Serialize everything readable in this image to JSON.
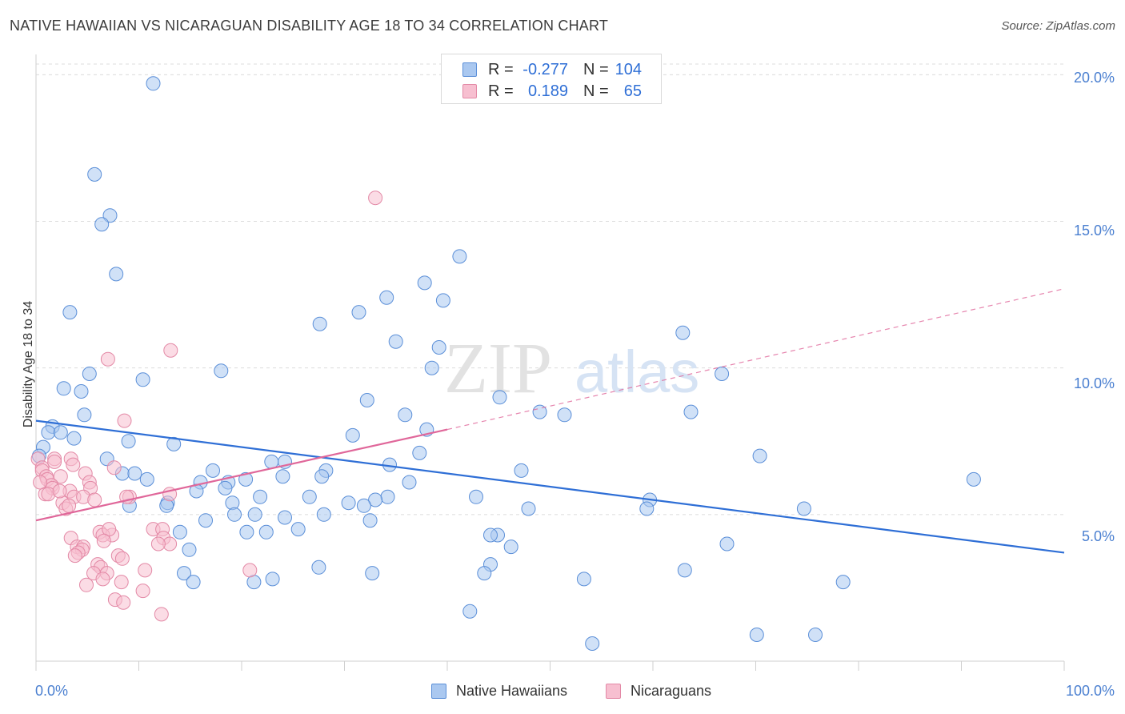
{
  "title": "NATIVE HAWAIIAN VS NICARAGUAN DISABILITY AGE 18 TO 34 CORRELATION CHART",
  "source": "Source: ZipAtlas.com",
  "watermark": {
    "zip": "ZIP",
    "atlas": "atlas"
  },
  "stats": [
    {
      "r_label": "R =",
      "r_value": "-0.277",
      "n_label": "N =",
      "n_value": "104",
      "color": "#aac8f0",
      "border": "#5b8fd8"
    },
    {
      "r_label": "R =",
      "r_value": "0.189",
      "n_label": "N =",
      "n_value": "65",
      "color": "#f7bfd0",
      "border": "#e389a6"
    }
  ],
  "legend": [
    {
      "label": "Native Hawaiians",
      "color": "#aac8f0",
      "border": "#5b8fd8"
    },
    {
      "label": "Nicaraguans",
      "color": "#f7bfd0",
      "border": "#e389a6"
    }
  ],
  "chart_data": {
    "type": "scatter",
    "title": "NATIVE HAWAIIAN VS NICARAGUAN DISABILITY AGE 18 TO 34 CORRELATION CHART",
    "xlabel": "",
    "ylabel": "Disability Age 18 to 34",
    "xlim": [
      0,
      100
    ],
    "ylim": [
      0,
      20.5
    ],
    "x_tick_labels": [
      "0.0%",
      "100.0%"
    ],
    "y_ticks": [
      5,
      10,
      15,
      20
    ],
    "y_tick_labels": [
      "5.0%",
      "10.0%",
      "15.0%",
      "20.0%"
    ],
    "grid": "horizontal dashed",
    "legend_position": "bottom",
    "series": [
      {
        "name": "Native Hawaiians",
        "color": "#5b8fd8",
        "fill": "#aac8f0",
        "trend": {
          "x": [
            0,
            100
          ],
          "y": [
            8.2,
            3.7
          ],
          "style": "solid",
          "color": "#2f6fd6"
        },
        "points": [
          [
            11.4,
            19.7
          ],
          [
            5.7,
            16.6
          ],
          [
            7.2,
            15.2
          ],
          [
            6.4,
            14.9
          ],
          [
            7.8,
            13.2
          ],
          [
            41.2,
            13.8
          ],
          [
            37.8,
            12.9
          ],
          [
            34.1,
            12.4
          ],
          [
            39.6,
            12.3
          ],
          [
            3.3,
            11.9
          ],
          [
            31.4,
            11.9
          ],
          [
            27.6,
            11.5
          ],
          [
            62.9,
            11.2
          ],
          [
            35.0,
            10.9
          ],
          [
            39.2,
            10.7
          ],
          [
            38.5,
            10.0
          ],
          [
            18.0,
            9.9
          ],
          [
            5.2,
            9.8
          ],
          [
            66.7,
            9.8
          ],
          [
            10.4,
            9.6
          ],
          [
            2.7,
            9.3
          ],
          [
            4.4,
            9.2
          ],
          [
            45.1,
            9.0
          ],
          [
            32.2,
            8.9
          ],
          [
            49.0,
            8.5
          ],
          [
            63.7,
            8.5
          ],
          [
            35.9,
            8.4
          ],
          [
            51.4,
            8.4
          ],
          [
            4.7,
            8.4
          ],
          [
            1.6,
            8.0
          ],
          [
            38.0,
            7.9
          ],
          [
            1.2,
            7.8
          ],
          [
            2.4,
            7.8
          ],
          [
            3.7,
            7.6
          ],
          [
            30.8,
            7.7
          ],
          [
            9.0,
            7.5
          ],
          [
            13.4,
            7.4
          ],
          [
            0.7,
            7.3
          ],
          [
            0.3,
            7.0
          ],
          [
            37.3,
            7.1
          ],
          [
            70.4,
            7.0
          ],
          [
            6.9,
            6.9
          ],
          [
            24.2,
            6.8
          ],
          [
            22.9,
            6.8
          ],
          [
            34.4,
            6.7
          ],
          [
            47.2,
            6.5
          ],
          [
            17.2,
            6.5
          ],
          [
            28.2,
            6.5
          ],
          [
            8.4,
            6.4
          ],
          [
            9.6,
            6.4
          ],
          [
            24.0,
            6.3
          ],
          [
            27.8,
            6.3
          ],
          [
            10.8,
            6.2
          ],
          [
            16.0,
            6.1
          ],
          [
            18.7,
            6.1
          ],
          [
            20.4,
            6.2
          ],
          [
            36.3,
            6.1
          ],
          [
            91.2,
            6.2
          ],
          [
            18.4,
            5.9
          ],
          [
            15.6,
            5.8
          ],
          [
            26.6,
            5.6
          ],
          [
            34.2,
            5.6
          ],
          [
            42.8,
            5.6
          ],
          [
            33.0,
            5.5
          ],
          [
            12.8,
            5.4
          ],
          [
            19.1,
            5.4
          ],
          [
            21.8,
            5.6
          ],
          [
            30.4,
            5.4
          ],
          [
            31.9,
            5.3
          ],
          [
            59.7,
            5.5
          ],
          [
            74.7,
            5.2
          ],
          [
            47.9,
            5.2
          ],
          [
            9.1,
            5.3
          ],
          [
            12.7,
            5.3
          ],
          [
            19.3,
            5.0
          ],
          [
            21.3,
            5.0
          ],
          [
            28.0,
            5.0
          ],
          [
            24.2,
            4.9
          ],
          [
            32.5,
            4.8
          ],
          [
            16.5,
            4.8
          ],
          [
            59.4,
            5.2
          ],
          [
            14.0,
            4.4
          ],
          [
            20.5,
            4.4
          ],
          [
            22.4,
            4.4
          ],
          [
            25.5,
            4.5
          ],
          [
            44.9,
            4.3
          ],
          [
            44.2,
            4.3
          ],
          [
            46.2,
            3.9
          ],
          [
            67.2,
            4.0
          ],
          [
            14.9,
            3.8
          ],
          [
            44.2,
            3.3
          ],
          [
            27.5,
            3.2
          ],
          [
            43.6,
            3.0
          ],
          [
            32.7,
            3.0
          ],
          [
            14.4,
            3.0
          ],
          [
            53.3,
            2.8
          ],
          [
            63.1,
            3.1
          ],
          [
            15.3,
            2.7
          ],
          [
            21.2,
            2.7
          ],
          [
            23.0,
            2.8
          ],
          [
            78.5,
            2.7
          ],
          [
            42.2,
            1.7
          ],
          [
            54.1,
            0.6
          ],
          [
            70.1,
            0.9
          ],
          [
            75.8,
            0.9
          ]
        ]
      },
      {
        "name": "Nicaraguans",
        "color": "#e389a6",
        "fill": "#f7bfd0",
        "trend": {
          "x": [
            0,
            40
          ],
          "y": [
            4.8,
            7.9
          ],
          "style": "solid",
          "color": "#e0679a",
          "extension": {
            "x": [
              40,
              100
            ],
            "y": [
              7.9,
              12.7
            ],
            "style": "dashed"
          }
        },
        "points": [
          [
            33.0,
            15.8
          ],
          [
            13.1,
            10.6
          ],
          [
            7.0,
            10.3
          ],
          [
            8.6,
            8.2
          ],
          [
            0.2,
            6.9
          ],
          [
            1.8,
            6.9
          ],
          [
            3.4,
            6.9
          ],
          [
            1.8,
            6.8
          ],
          [
            0.6,
            6.6
          ],
          [
            7.6,
            6.6
          ],
          [
            3.6,
            6.7
          ],
          [
            0.6,
            6.5
          ],
          [
            4.8,
            6.4
          ],
          [
            1.0,
            6.3
          ],
          [
            2.4,
            6.3
          ],
          [
            1.1,
            6.2
          ],
          [
            5.2,
            6.1
          ],
          [
            1.5,
            6.0
          ],
          [
            1.6,
            5.9
          ],
          [
            3.3,
            5.8
          ],
          [
            5.3,
            5.9
          ],
          [
            0.9,
            5.7
          ],
          [
            1.2,
            5.7
          ],
          [
            3.7,
            5.6
          ],
          [
            4.6,
            5.6
          ],
          [
            9.1,
            5.6
          ],
          [
            8.8,
            5.6
          ],
          [
            13.0,
            5.7
          ],
          [
            5.7,
            5.5
          ],
          [
            2.6,
            5.4
          ],
          [
            2.9,
            5.2
          ],
          [
            3.2,
            5.3
          ],
          [
            11.4,
            4.5
          ],
          [
            12.3,
            4.5
          ],
          [
            6.2,
            4.4
          ],
          [
            7.4,
            4.3
          ],
          [
            6.5,
            4.3
          ],
          [
            12.4,
            4.2
          ],
          [
            3.4,
            4.2
          ],
          [
            7.1,
            4.5
          ],
          [
            6.6,
            4.1
          ],
          [
            13.0,
            4.0
          ],
          [
            11.9,
            4.0
          ],
          [
            4.0,
            3.9
          ],
          [
            4.6,
            3.9
          ],
          [
            4.5,
            3.8
          ],
          [
            8.0,
            3.6
          ],
          [
            4.1,
            3.7
          ],
          [
            3.8,
            3.6
          ],
          [
            8.4,
            3.5
          ],
          [
            6.0,
            3.3
          ],
          [
            6.3,
            3.2
          ],
          [
            10.6,
            3.1
          ],
          [
            20.8,
            3.1
          ],
          [
            5.6,
            3.0
          ],
          [
            6.9,
            3.0
          ],
          [
            8.3,
            2.7
          ],
          [
            4.9,
            2.6
          ],
          [
            10.4,
            2.4
          ],
          [
            7.7,
            2.1
          ],
          [
            8.5,
            2.0
          ],
          [
            12.2,
            1.6
          ],
          [
            6.5,
            2.8
          ],
          [
            2.3,
            5.8
          ],
          [
            0.4,
            6.1
          ]
        ]
      }
    ]
  }
}
